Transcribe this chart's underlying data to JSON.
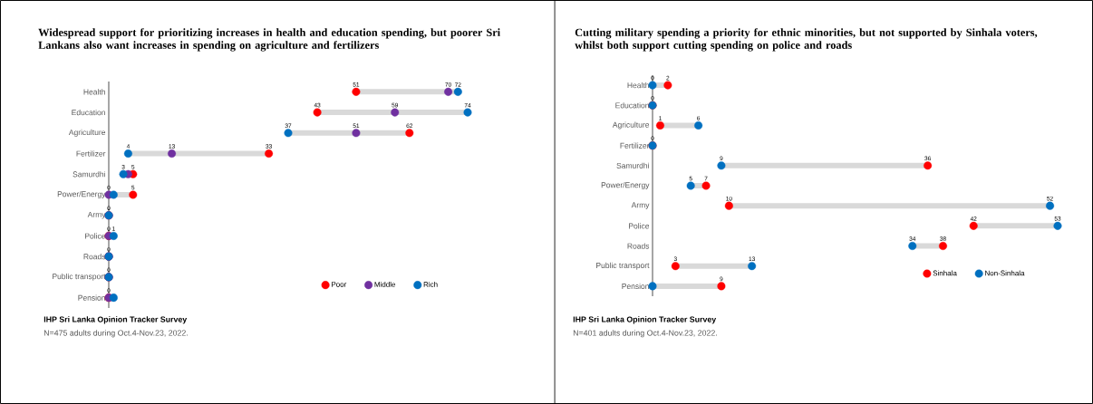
{
  "chart_data": [
    {
      "type": "scatter",
      "orientation": "horizontal",
      "title": "Widespread support for prioritizing increases in health and education spending, but poorer Sri Lankans also want increases in spending on agriculture and fertilizers",
      "categories": [
        "Health",
        "Education",
        "Agriculture",
        "Fertilizer",
        "Samurdhi",
        "Power/Energy",
        "Army",
        "Police",
        "Roads",
        "Public transport",
        "Pension"
      ],
      "marker": "circle",
      "legend": "bottom right",
      "tick_labels": "y",
      "annotations": [
        "IHP Sri Lanka Opinion Tracker Survey",
        "N=475 adults during Oct.4-Nov.23, 2022."
      ],
      "series": [
        {
          "name": "Poor",
          "color": "#ff0000",
          "values": [
            51,
            43,
            62,
            33,
            5,
            5,
            0,
            0,
            0,
            0,
            0
          ],
          "value_labels": [
            "51",
            "43",
            "62",
            "33",
            "5",
            "5",
            null,
            null,
            null,
            null,
            null
          ]
        },
        {
          "name": "Middle",
          "color": "#7030a0",
          "values": [
            70,
            59,
            51,
            13,
            4,
            0,
            0,
            0,
            0,
            0,
            0
          ],
          "value_labels": [
            "70",
            "59",
            "51",
            "13",
            null,
            "0",
            "0",
            "0",
            "0",
            "0",
            "0"
          ]
        },
        {
          "name": "Rich",
          "color": "#0070c0",
          "values": [
            72,
            74,
            37,
            4,
            3,
            1,
            0,
            1,
            0,
            0,
            1
          ],
          "value_labels": [
            "72",
            "74",
            "37",
            "4",
            "3",
            null,
            null,
            "1",
            null,
            null,
            null
          ]
        }
      ]
    },
    {
      "type": "scatter",
      "orientation": "horizontal",
      "title": "Cutting military spending a priority for ethnic minorities, but not supported by Sinhala voters, whilst both support cutting spending on police and roads",
      "categories": [
        "Health",
        "Education",
        "Agriculture",
        "Fertilizer",
        "Samurdhi",
        "Power/Energy",
        "Army",
        "Police",
        "Roads",
        "Public transport",
        "Pension"
      ],
      "marker": "circle",
      "legend": "bottom right",
      "tick_labels": "y",
      "annotations": [
        "IHP Sri Lanka Opinion Tracker Survey",
        "N=401 adults during Oct.4-Nov.23, 2022."
      ],
      "series": [
        {
          "name": "Sinhala",
          "color": "#ff0000",
          "values": [
            2,
            0,
            1,
            0,
            36,
            7,
            10,
            42,
            38,
            3,
            9
          ],
          "value_labels": [
            "2",
            null,
            "1",
            null,
            "36",
            "7",
            "10",
            "42",
            "38",
            "3",
            "9"
          ]
        },
        {
          "name": "Non-Sinhala",
          "color": "#0070c0",
          "values": [
            0,
            0,
            6,
            0,
            9,
            5,
            52,
            53,
            34,
            13,
            0
          ],
          "value_labels": [
            "0",
            "0",
            "6",
            "0",
            "9",
            "5",
            "52",
            "53",
            "34",
            "13",
            null
          ]
        }
      ]
    }
  ]
}
